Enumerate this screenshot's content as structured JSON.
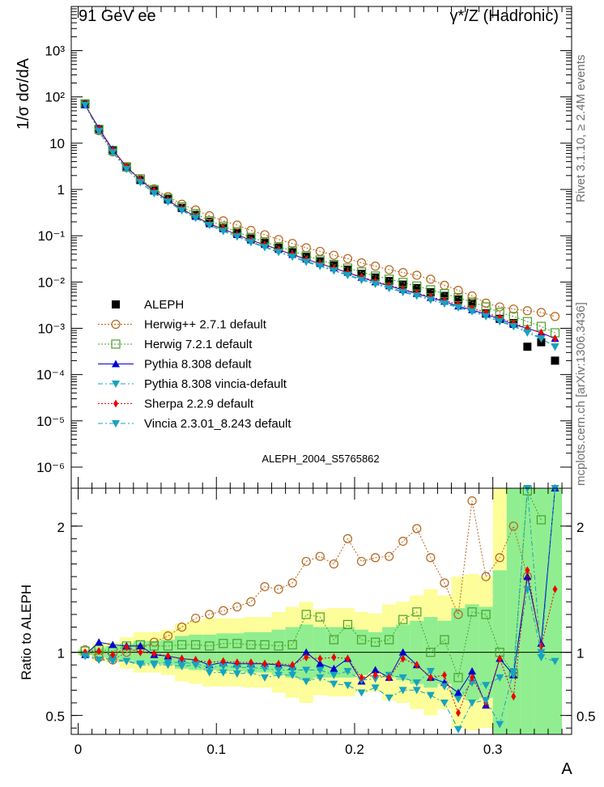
{
  "header": {
    "left": "91 GeV ee",
    "right": "γ*/Z (Hadronic)"
  },
  "side_labels": {
    "rivet": "Rivet 3.1.10, ≥ 2.4M events",
    "mcplots": "mcplots.cern.ch [arXiv:1306.3436]"
  },
  "analysis_id": "ALEPH_2004_S5765862",
  "chart_data": [
    {
      "type": "scatter",
      "panel": "main",
      "ylabel": "1/σ  dσ/dA",
      "xlabel": "A",
      "yscale": "log",
      "xlim": [
        -0.005,
        0.357
      ],
      "ylim": [
        3.5e-07,
        9000
      ],
      "yticks": [
        {
          "v": 1e-06,
          "l": "10⁻⁶"
        },
        {
          "v": 1e-05,
          "l": "10⁻⁵"
        },
        {
          "v": 0.0001,
          "l": "10⁻⁴"
        },
        {
          "v": 0.001,
          "l": "10⁻³"
        },
        {
          "v": 0.01,
          "l": "10⁻²"
        },
        {
          "v": 0.1,
          "l": "10⁻¹"
        },
        {
          "v": 1,
          "l": "1"
        },
        {
          "v": 10,
          "l": "10"
        },
        {
          "v": 100,
          "l": "10²"
        },
        {
          "v": 1000,
          "l": "10³"
        }
      ],
      "x": [
        0.005,
        0.015,
        0.025,
        0.035,
        0.045,
        0.055,
        0.065,
        0.075,
        0.085,
        0.095,
        0.105,
        0.115,
        0.125,
        0.135,
        0.145,
        0.155,
        0.165,
        0.175,
        0.185,
        0.195,
        0.205,
        0.215,
        0.225,
        0.235,
        0.245,
        0.255,
        0.265,
        0.275,
        0.285,
        0.295,
        0.305,
        0.315,
        0.325,
        0.335,
        0.345
      ],
      "series": [
        {
          "name": "ALEPH",
          "color": "#000000",
          "marker": "square-filled",
          "line": "none",
          "values": [
            70,
            19.5,
            6.9,
            3.0,
            1.6,
            0.95,
            0.62,
            0.4,
            0.28,
            0.2,
            0.15,
            0.115,
            0.087,
            0.07,
            0.055,
            0.044,
            0.035,
            0.028,
            0.023,
            0.0185,
            0.015,
            0.0125,
            0.0105,
            0.0088,
            0.0074,
            0.006,
            0.005,
            0.0042,
            0.0035,
            0.0021,
            0.0016,
            0.0013,
            0.0004,
            0.0005,
            0.0002
          ]
        },
        {
          "name": "Herwig++ 2.7.1 default",
          "color": "#b5651d",
          "marker": "circle-open",
          "line": "dotted",
          "values": [
            71,
            18.6,
            6.5,
            3.0,
            1.65,
            1.03,
            0.7,
            0.48,
            0.36,
            0.27,
            0.21,
            0.17,
            0.13,
            0.105,
            0.083,
            0.068,
            0.055,
            0.046,
            0.038,
            0.032,
            0.026,
            0.022,
            0.0185,
            0.016,
            0.014,
            0.0115,
            0.0085,
            0.0066,
            0.005,
            0.0035,
            0.0029,
            0.0026,
            0.0024,
            0.0022,
            0.0018
          ]
        },
        {
          "name": "Herwig 7.2.1 default",
          "color": "#4aa02c",
          "marker": "square-open",
          "line": "dotted",
          "values": [
            71,
            20,
            7,
            3.1,
            1.7,
            0.99,
            0.64,
            0.42,
            0.3,
            0.21,
            0.16,
            0.122,
            0.092,
            0.074,
            0.058,
            0.047,
            0.037,
            0.03,
            0.024,
            0.02,
            0.0165,
            0.0135,
            0.0115,
            0.0098,
            0.0082,
            0.0068,
            0.0056,
            0.0046,
            0.0037,
            0.0029,
            0.0022,
            0.0018,
            0.0014,
            0.0011,
            0.0008
          ]
        },
        {
          "name": "Pythia 8.308 default",
          "color": "#0000cc",
          "marker": "triangle-up",
          "line": "solid",
          "values": [
            67,
            21,
            7.3,
            3.1,
            1.6,
            0.92,
            0.58,
            0.38,
            0.26,
            0.18,
            0.14,
            0.105,
            0.08,
            0.064,
            0.05,
            0.039,
            0.031,
            0.025,
            0.02,
            0.016,
            0.0125,
            0.01,
            0.0082,
            0.0068,
            0.0056,
            0.0046,
            0.0038,
            0.003,
            0.0025,
            0.002,
            0.0016,
            0.0012,
            0.001,
            0.0008,
            0.0006
          ]
        },
        {
          "name": "Pythia 8.308 vincia-default",
          "color": "#17a3bf",
          "marker": "triangle-down",
          "line": "dashdot",
          "values": [
            67,
            18,
            6.4,
            2.8,
            1.45,
            0.84,
            0.55,
            0.36,
            0.25,
            0.17,
            0.13,
            0.098,
            0.075,
            0.058,
            0.045,
            0.036,
            0.028,
            0.023,
            0.018,
            0.0145,
            0.0115,
            0.0093,
            0.0076,
            0.0063,
            0.0052,
            0.0043,
            0.0036,
            0.0029,
            0.0024,
            0.0019,
            0.0015,
            0.0011,
            0.0009,
            0.0006,
            0.0004
          ]
        },
        {
          "name": "Sherpa 2.2.9 default",
          "color": "#ee0000",
          "marker": "diamond",
          "line": "dotted",
          "values": [
            69,
            20,
            7,
            3.1,
            1.6,
            0.94,
            0.59,
            0.38,
            0.26,
            0.18,
            0.14,
            0.105,
            0.08,
            0.064,
            0.05,
            0.04,
            0.031,
            0.025,
            0.02,
            0.016,
            0.013,
            0.0105,
            0.0085,
            0.007,
            0.0058,
            0.0048,
            0.004,
            0.0033,
            0.0027,
            0.0022,
            0.0017,
            0.0013,
            0.001,
            0.0008,
            0.0006
          ]
        },
        {
          "name": "Vincia 2.3.01_8.243 default",
          "color": "#17a3bf",
          "marker": "triangle-down",
          "line": "dashdot",
          "values": [
            67,
            18,
            6.3,
            2.75,
            1.42,
            0.82,
            0.54,
            0.35,
            0.24,
            0.17,
            0.125,
            0.095,
            0.072,
            0.056,
            0.044,
            0.035,
            0.027,
            0.022,
            0.0175,
            0.014,
            0.011,
            0.009,
            0.0073,
            0.006,
            0.005,
            0.0041,
            0.0034,
            0.0028,
            0.0023,
            0.0018,
            0.0014,
            0.0011,
            0.0008,
            0.0006,
            0.0004
          ]
        }
      ]
    },
    {
      "type": "scatter",
      "panel": "ratio",
      "ylabel": "Ratio to ALEPH",
      "xlabel": "A",
      "xlim": [
        -0.005,
        0.357
      ],
      "ylim": [
        0.35,
        2.3
      ],
      "yticks": [
        {
          "v": 0.5,
          "l": "0.5"
        },
        {
          "v": 1,
          "l": "1"
        },
        {
          "v": 2,
          "l": "2"
        }
      ],
      "xticks": [
        {
          "v": 0,
          "l": "0"
        },
        {
          "v": 0.1,
          "l": "0.1"
        },
        {
          "v": 0.2,
          "l": "0.2"
        },
        {
          "v": 0.3,
          "l": "0.3"
        }
      ],
      "reference": 1,
      "bands": {
        "yellow": [
          [
            0.97,
            1.03
          ],
          [
            0.93,
            1.07
          ],
          [
            0.92,
            1.08
          ],
          [
            0.87,
            1.12
          ],
          [
            0.84,
            1.16
          ],
          [
            0.84,
            1.16
          ],
          [
            0.82,
            1.18
          ],
          [
            0.77,
            1.23
          ],
          [
            0.75,
            1.25
          ],
          [
            0.73,
            1.27
          ],
          [
            0.73,
            1.27
          ],
          [
            0.73,
            1.27
          ],
          [
            0.72,
            1.28
          ],
          [
            0.72,
            1.28
          ],
          [
            0.68,
            1.32
          ],
          [
            0.64,
            1.36
          ],
          [
            0.6,
            1.4
          ],
          [
            0.66,
            1.34
          ],
          [
            0.65,
            1.35
          ],
          [
            0.65,
            1.35
          ],
          [
            0.68,
            1.32
          ],
          [
            0.69,
            1.31
          ],
          [
            0.62,
            1.38
          ],
          [
            0.6,
            1.4
          ],
          [
            0.55,
            1.45
          ],
          [
            0.5,
            1.5
          ],
          [
            0.55,
            1.45
          ],
          [
            0.4,
            1.6
          ],
          [
            0.38,
            1.62
          ],
          [
            0.4,
            1.6
          ],
          [
            0.0,
            2.3
          ],
          [
            0.35,
            2.3
          ],
          [
            0.35,
            2.3
          ],
          [
            0.35,
            2.3
          ],
          [
            0.35,
            2.3
          ]
        ],
        "green": [
          [
            0.98,
            1.02
          ],
          [
            0.96,
            1.04
          ],
          [
            0.95,
            1.05
          ],
          [
            0.93,
            1.07
          ],
          [
            0.91,
            1.09
          ],
          [
            0.91,
            1.09
          ],
          [
            0.9,
            1.1
          ],
          [
            0.87,
            1.13
          ],
          [
            0.86,
            1.14
          ],
          [
            0.86,
            1.14
          ],
          [
            0.85,
            1.15
          ],
          [
            0.85,
            1.15
          ],
          [
            0.84,
            1.16
          ],
          [
            0.84,
            1.16
          ],
          [
            0.82,
            1.18
          ],
          [
            0.8,
            1.2
          ],
          [
            0.78,
            1.22
          ],
          [
            0.8,
            1.2
          ],
          [
            0.8,
            1.2
          ],
          [
            0.8,
            1.2
          ],
          [
            0.82,
            1.18
          ],
          [
            0.84,
            1.16
          ],
          [
            0.8,
            1.2
          ],
          [
            0.78,
            1.22
          ],
          [
            0.75,
            1.25
          ],
          [
            0.72,
            1.28
          ],
          [
            0.75,
            1.25
          ],
          [
            0.65,
            1.35
          ],
          [
            0.62,
            1.38
          ],
          [
            0.64,
            1.36
          ],
          [
            0.35,
            1.65
          ],
          [
            0.35,
            2.3
          ],
          [
            0.35,
            2.3
          ],
          [
            0.35,
            2.3
          ],
          [
            0.35,
            2.3
          ]
        ]
      },
      "series": [
        {
          "name": "Herwig++ 2.7.1 default",
          "color": "#b5651d",
          "marker": "circle-open",
          "line": "dotted",
          "values": [
            1.02,
            0.96,
            0.94,
            1.0,
            1.03,
            1.08,
            1.13,
            1.2,
            1.27,
            1.3,
            1.33,
            1.36,
            1.4,
            1.52,
            1.5,
            1.55,
            1.72,
            1.76,
            1.7,
            1.9,
            1.72,
            1.75,
            1.76,
            1.88,
            1.98,
            1.75,
            1.55,
            1.3,
            2.2,
            1.6,
            1.75,
            2.0,
            1.6,
            null,
            null
          ]
        },
        {
          "name": "Herwig 7.2.1 default",
          "color": "#4aa02c",
          "marker": "square-open",
          "line": "dotted",
          "values": [
            1.01,
            1.02,
            1.01,
            1.05,
            1.06,
            1.05,
            1.05,
            1.06,
            1.06,
            1.05,
            1.07,
            1.07,
            1.06,
            1.06,
            1.05,
            1.06,
            1.3,
            1.28,
            1.1,
            1.22,
            1.1,
            1.08,
            1.1,
            1.26,
            1.32,
            1.0,
            1.1,
            0.8,
            1.32,
            1.3,
            1.0,
            0.83,
            2.28,
            2.05,
            null
          ]
        },
        {
          "name": "Pythia 8.308 default",
          "color": "#0000cc",
          "marker": "triangle-up",
          "line": "solid",
          "values": [
            0.98,
            1.08,
            1.06,
            1.05,
            1.05,
            0.98,
            0.97,
            0.95,
            0.94,
            0.9,
            0.92,
            0.91,
            0.91,
            0.91,
            0.9,
            0.89,
            1.0,
            0.91,
            0.87,
            0.95,
            0.77,
            0.86,
            0.8,
            1.0,
            0.9,
            0.8,
            0.76,
            0.68,
            0.85,
            0.58,
            0.95,
            0.82,
            1.6,
            1.07,
            2.3
          ]
        },
        {
          "name": "Pythia 8.308 vincia-default",
          "color": "#17a3bf",
          "marker": "triangle-down",
          "line": "dashdot",
          "values": [
            0.98,
            0.94,
            0.95,
            0.93,
            0.91,
            0.91,
            0.92,
            0.92,
            0.91,
            0.88,
            0.89,
            0.88,
            0.88,
            0.87,
            0.86,
            0.86,
            0.86,
            0.86,
            0.82,
            0.85,
            0.78,
            0.79,
            0.82,
            0.8,
            0.76,
            0.85,
            0.73,
            0.63,
            0.76,
            0.74,
            0.8,
            0.82,
            1.5,
            1.0,
            2.3
          ]
        },
        {
          "name": "Sherpa 2.2.9 default",
          "color": "#ee0000",
          "marker": "diamond",
          "line": "dotted",
          "values": [
            1.0,
            1.01,
            0.98,
            1.04,
            1.0,
            0.99,
            0.97,
            0.95,
            0.94,
            0.92,
            0.93,
            0.92,
            0.92,
            0.91,
            0.91,
            0.9,
            0.96,
            0.95,
            0.96,
            0.95,
            0.8,
            0.82,
            0.8,
            0.95,
            0.9,
            0.8,
            0.82,
            0.52,
            0.8,
            0.6,
            0.95,
            0.65,
            1.65,
            1.05,
            1.5
          ]
        },
        {
          "name": "Vincia 2.3.01_8.243 default",
          "color": "#17a3bf",
          "marker": "triangle-down",
          "line": "dashdot",
          "values": [
            0.97,
            0.94,
            0.93,
            0.93,
            0.9,
            0.9,
            0.9,
            0.89,
            0.9,
            0.84,
            0.84,
            0.83,
            0.84,
            0.8,
            0.82,
            0.82,
            0.77,
            0.8,
            0.75,
            0.74,
            0.68,
            0.72,
            0.64,
            0.7,
            0.7,
            0.66,
            0.6,
            0.39,
            0.6,
            0.62,
            0.43,
            0.85,
            2.3,
            0.96,
            0.93
          ]
        }
      ]
    }
  ]
}
